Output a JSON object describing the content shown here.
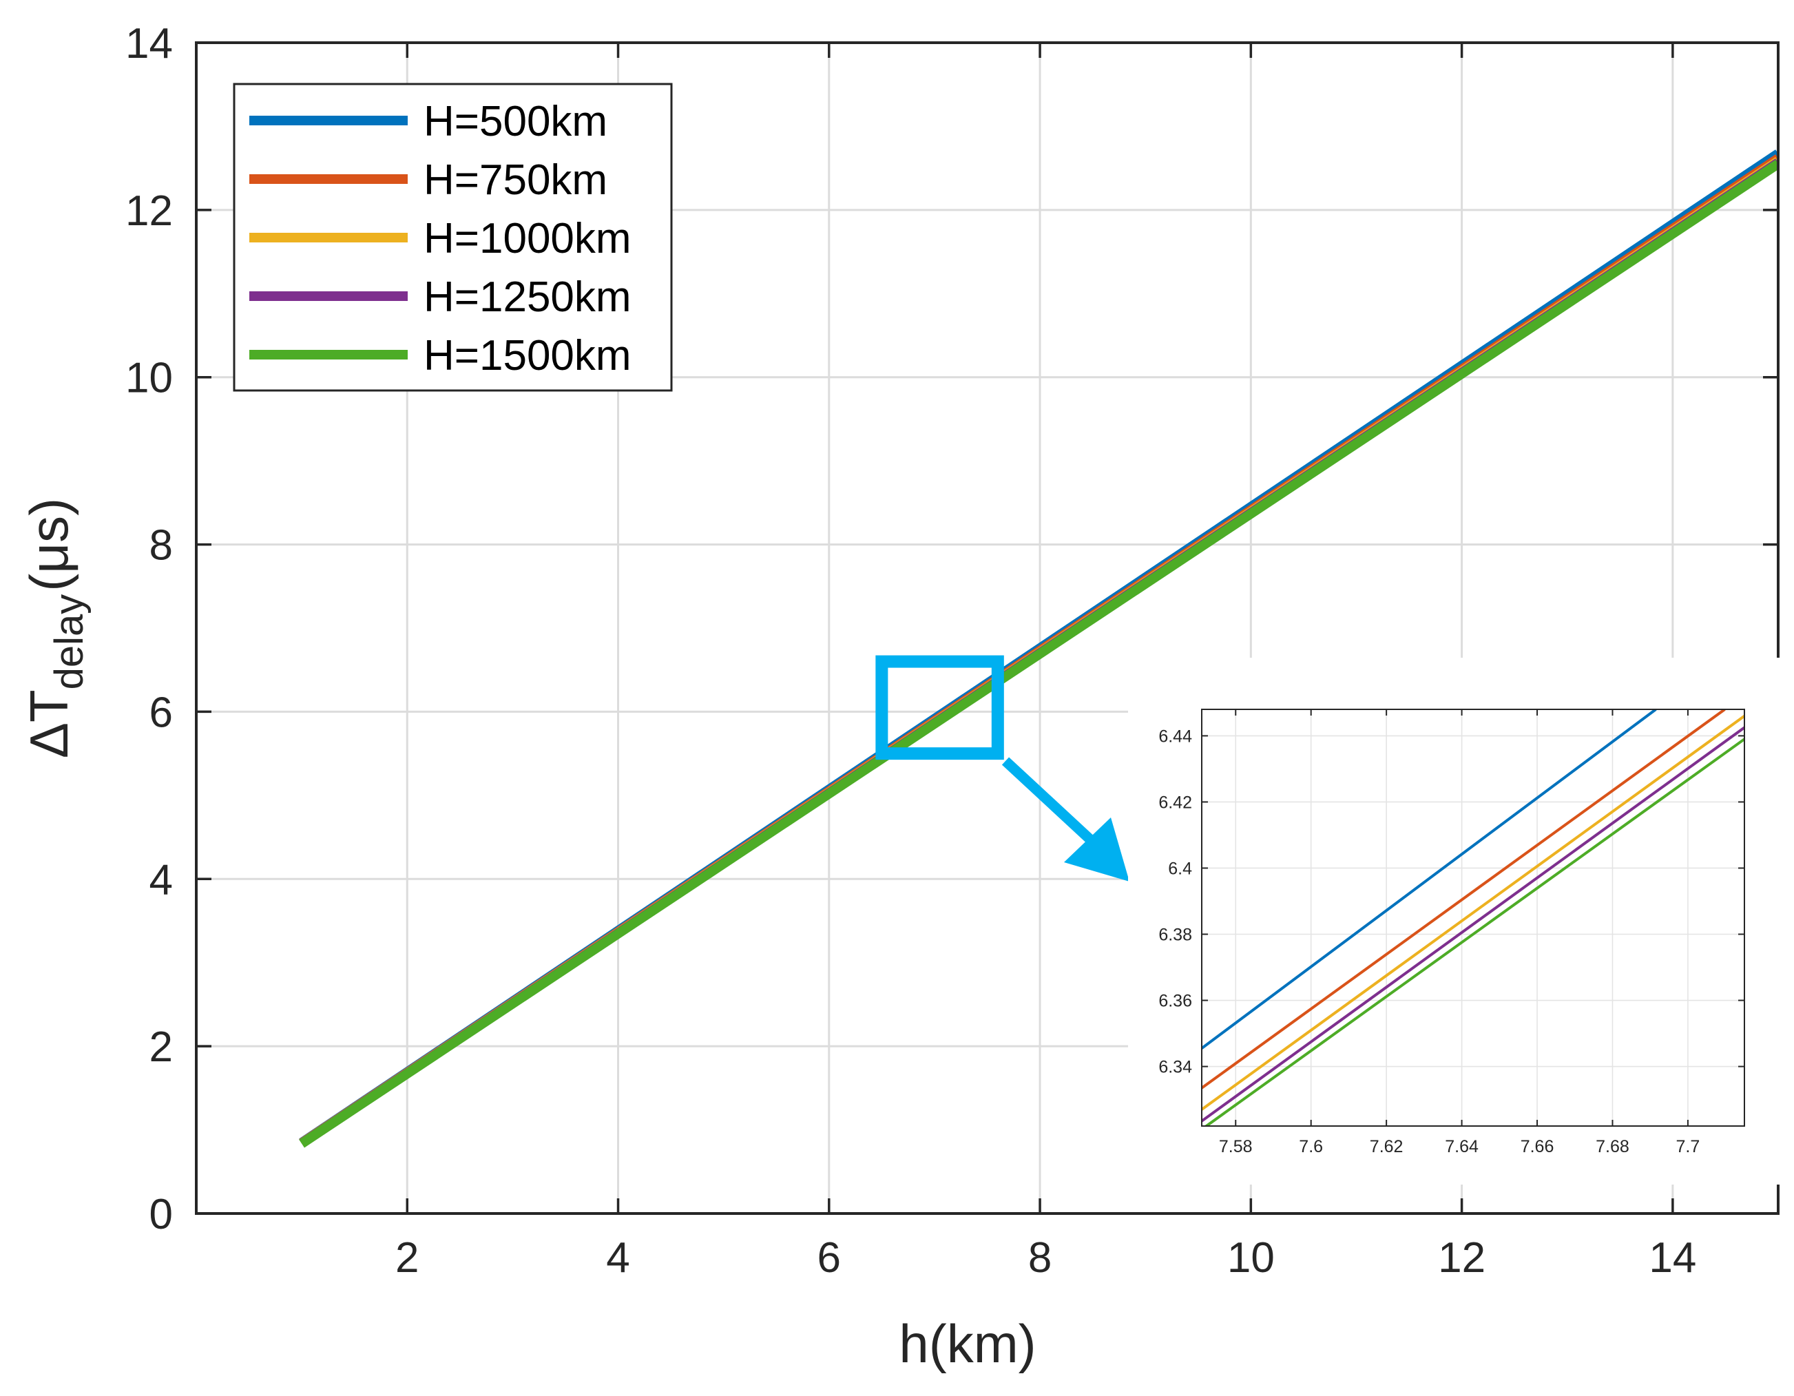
{
  "chart_data": [
    {
      "id": "main",
      "type": "line",
      "title": "",
      "xlabel": "h(km)",
      "ylabel": "ΔT",
      "ylabel_subscript": "delay",
      "ylabel_unit": "(μs)",
      "xlim": [
        0,
        15
      ],
      "ylim": [
        0,
        14
      ],
      "xticks": [
        2,
        4,
        6,
        8,
        10,
        12,
        14
      ],
      "yticks": [
        0,
        2,
        4,
        6,
        8,
        10,
        12,
        14
      ],
      "xtick_labels": [
        "2",
        "4",
        "6",
        "8",
        "10",
        "12",
        "14"
      ],
      "ytick_labels": [
        "0",
        "2",
        "4",
        "6",
        "8",
        "10",
        "12",
        "14"
      ],
      "grid": true,
      "legend_position": "top-left",
      "series": [
        {
          "name": "H=500km",
          "color": "#0072BD",
          "x": [
            1,
            15
          ],
          "y": [
            0.847,
            12.675
          ]
        },
        {
          "name": "H=750km",
          "color": "#D95319",
          "x": [
            1,
            15
          ],
          "y": [
            0.843,
            12.617
          ]
        },
        {
          "name": "H=1000km",
          "color": "#EDB120",
          "x": [
            1,
            15
          ],
          "y": [
            0.84,
            12.585
          ]
        },
        {
          "name": "H=1250km",
          "color": "#7E2F8E",
          "x": [
            1,
            15
          ],
          "y": [
            0.838,
            12.567
          ]
        },
        {
          "name": "H=1500km",
          "color": "#4DAC26",
          "x": [
            1,
            15
          ],
          "y": [
            0.835,
            12.552
          ]
        }
      ],
      "zoom_box": {
        "x": [
          6.5,
          7.6
        ],
        "y": [
          5.5,
          6.6
        ],
        "color": "#00B0F0"
      }
    },
    {
      "id": "inset",
      "type": "line",
      "title": "",
      "xlabel": "",
      "ylabel": "",
      "xlim": [
        7.571,
        7.715
      ],
      "ylim": [
        6.322,
        6.448
      ],
      "xticks": [
        7.58,
        7.6,
        7.62,
        7.64,
        7.66,
        7.68,
        7.7
      ],
      "yticks": [
        6.34,
        6.36,
        6.38,
        6.4,
        6.42,
        6.44
      ],
      "xtick_labels": [
        "7.58",
        "7.6",
        "7.62",
        "7.64",
        "7.66",
        "7.68",
        "7.7"
      ],
      "ytick_labels": [
        "6.34",
        "6.36",
        "6.38",
        "6.4",
        "6.42",
        "6.44"
      ],
      "grid": true,
      "series": [
        {
          "name": "H=500km",
          "color": "#0072BD",
          "x": [
            7.571,
            7.6915
          ],
          "y": [
            6.3455,
            6.448
          ]
        },
        {
          "name": "H=750km",
          "color": "#D95319",
          "x": [
            7.571,
            7.7098
          ],
          "y": [
            6.3335,
            6.448
          ]
        },
        {
          "name": "H=1000km",
          "color": "#EDB120",
          "x": [
            7.571,
            7.715
          ],
          "y": [
            6.327,
            6.446
          ]
        },
        {
          "name": "H=1250km",
          "color": "#7E2F8E",
          "x": [
            7.571,
            7.715
          ],
          "y": [
            6.3235,
            6.4425
          ]
        },
        {
          "name": "H=1500km",
          "color": "#4DAC26",
          "x": [
            7.571,
            7.715
          ],
          "y": [
            6.321,
            6.439
          ]
        }
      ]
    }
  ]
}
